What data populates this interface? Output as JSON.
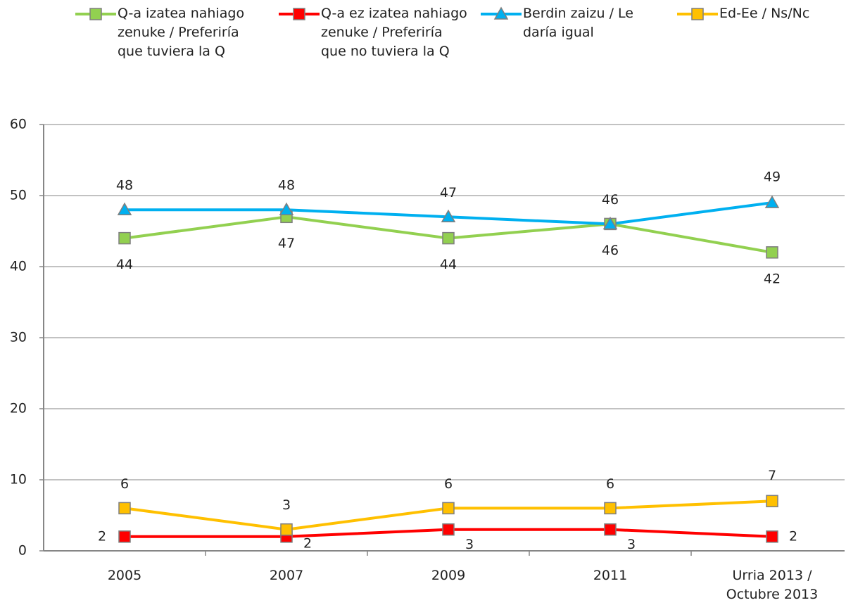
{
  "chart_data": {
    "type": "line",
    "categories": [
      "2005",
      "2007",
      "2009",
      "2011",
      "Urria 2013 / Octubre 2013"
    ],
    "series": [
      {
        "name": "Q-a izatea nahiago zenuke / Preferiría que tuviera la Q",
        "color": "#92d050",
        "marker": "square",
        "values": [
          44,
          47,
          44,
          46,
          42
        ]
      },
      {
        "name": "Q-a ez izatea nahiago zenuke / Preferiría que no tuviera la Q",
        "color": "#ff0000",
        "marker": "square",
        "values": [
          2,
          2,
          3,
          3,
          2
        ]
      },
      {
        "name": "Berdin zaizu / Le daría igual",
        "color": "#00b0f0",
        "marker": "triangle",
        "values": [
          48,
          48,
          47,
          46,
          49
        ]
      },
      {
        "name": "Ed-Ee / Ns/Nc",
        "color": "#ffc000",
        "marker": "square",
        "values": [
          6,
          3,
          6,
          6,
          7
        ]
      }
    ],
    "ylim": [
      0,
      60
    ],
    "yticks": [
      0,
      10,
      20,
      30,
      40,
      50,
      60
    ],
    "grid": true,
    "legend": "top"
  }
}
